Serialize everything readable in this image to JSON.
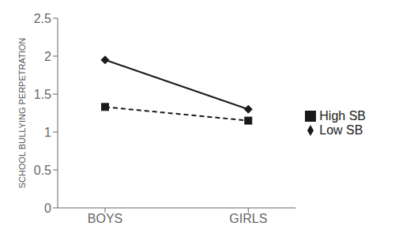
{
  "chart_data": {
    "type": "line",
    "categories": [
      "BOYS",
      "GIRLS"
    ],
    "series": [
      {
        "name": "Low SB",
        "color": "#1a1a1a",
        "values": [
          1.95,
          1.3
        ],
        "line_style": "solid",
        "marker": "diamond"
      },
      {
        "name": "High SB",
        "color": "#1a1a1a",
        "values": [
          1.33,
          1.15
        ],
        "line_style": "dashed",
        "marker": "square"
      }
    ],
    "ylabel": "SCHOOL BULLYING PERPETRATION",
    "ylim": [
      0,
      2.5
    ],
    "yticks": [
      0,
      0.5,
      1,
      1.5,
      2,
      2.5
    ],
    "grid": false,
    "legend": "right"
  }
}
